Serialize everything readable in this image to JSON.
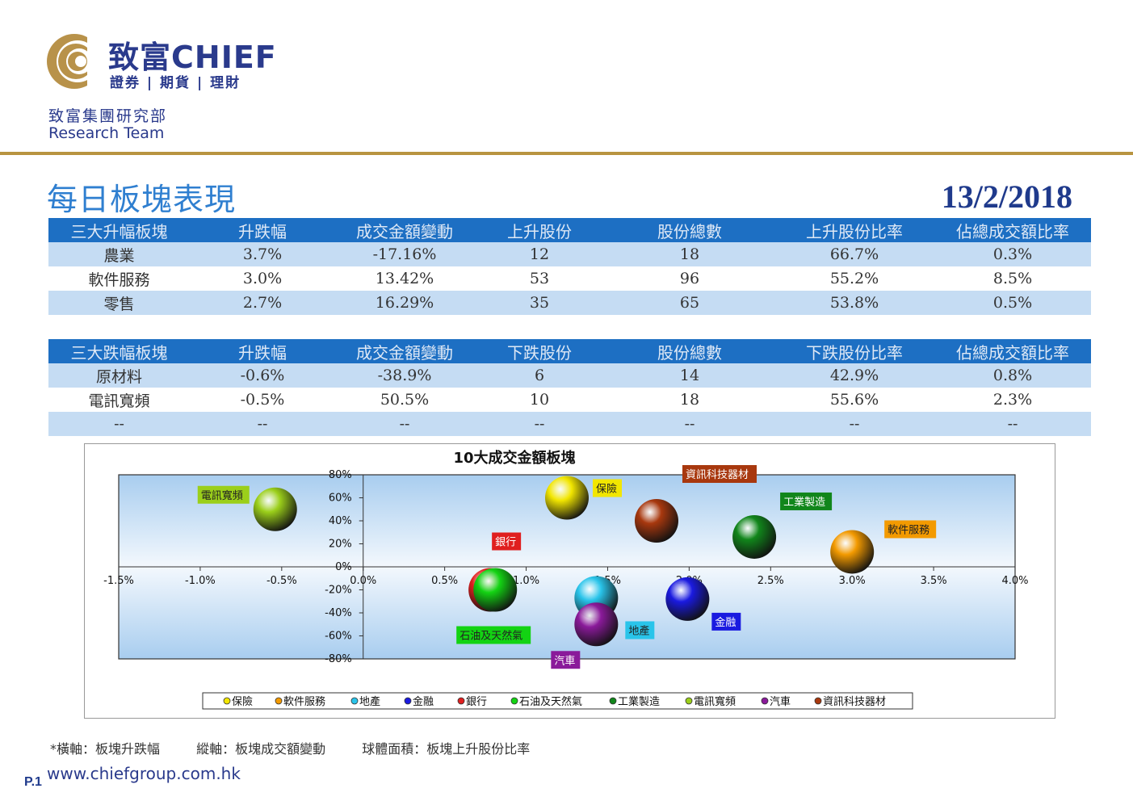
{
  "header": {
    "logo_cn": "致富CHIEF",
    "logo_sub": "證券 | 期貨 | 理財",
    "dept_cn": "致富集團研究部",
    "dept_en": "Research Team",
    "title": "每日板塊表現",
    "date": "13/2/2018"
  },
  "colors": {
    "accent": "#1d6fc3",
    "gold": "#b89440",
    "brand_blue": "#2a3a8c"
  },
  "top_gainers": {
    "headers": [
      "三大升幅板塊",
      "升跌幅",
      "成交金額變動",
      "上升股份",
      "股份總數",
      "上升股份比率",
      "佔總成交額比率"
    ],
    "rows": [
      [
        "農業",
        "3.7%",
        "-17.16%",
        "12",
        "18",
        "66.7%",
        "0.3%"
      ],
      [
        "軟件服務",
        "3.0%",
        "13.42%",
        "53",
        "96",
        "55.2%",
        "8.5%"
      ],
      [
        "零售",
        "2.7%",
        "16.29%",
        "35",
        "65",
        "53.8%",
        "0.5%"
      ]
    ]
  },
  "top_losers": {
    "headers": [
      "三大跌幅板塊",
      "升跌幅",
      "成交金額變動",
      "下跌股份",
      "股份總數",
      "下跌股份比率",
      "佔總成交額比率"
    ],
    "rows": [
      [
        "原材料",
        "-0.6%",
        "-38.9%",
        "6",
        "14",
        "42.9%",
        "0.8%"
      ],
      [
        "電訊寬頻",
        "-0.5%",
        "50.5%",
        "10",
        "18",
        "55.6%",
        "2.3%"
      ],
      [
        "--",
        "--",
        "--",
        "--",
        "--",
        "--",
        "--"
      ]
    ]
  },
  "chart_data": {
    "type": "scatter",
    "title": "10大成交金額板塊",
    "xlim": [
      -1.5,
      4.0
    ],
    "ylim": [
      -80,
      80
    ],
    "x_ticks": [
      "-1.5%",
      "-1.0%",
      "-0.5%",
      "0.0%",
      "0.5%",
      "1.0%",
      "1.5%",
      "2.0%",
      "2.5%",
      "3.0%",
      "3.5%",
      "4.0%"
    ],
    "y_ticks": [
      "80%",
      "60%",
      "40%",
      "20%",
      "0%",
      "-20%",
      "-40%",
      "-60%",
      "-80%"
    ],
    "legend_position": "bottom",
    "series": [
      {
        "name": "保險",
        "x": 1.25,
        "y": 60,
        "color": "#f2e600",
        "label_bg": "#f2e600",
        "label_fg": "#222222"
      },
      {
        "name": "軟件服務",
        "x": 3.0,
        "y": 13,
        "color": "#f39a00",
        "label_bg": "#f39a00",
        "label_fg": "#222222"
      },
      {
        "name": "地產",
        "x": 1.43,
        "y": -27,
        "color": "#29c4ea",
        "label_bg": "#29c4ea",
        "label_fg": "#222222"
      },
      {
        "name": "金融",
        "x": 1.99,
        "y": -28,
        "color": "#1a1ae0",
        "label_bg": "#1a1ae0",
        "label_fg": "#ffffff"
      },
      {
        "name": "銀行",
        "x": 0.78,
        "y": -20,
        "color": "#e01f1f",
        "label_bg": "#e01f1f",
        "label_fg": "#ffffff"
      },
      {
        "name": "石油及天然氣",
        "x": 0.81,
        "y": -20,
        "color": "#13d313",
        "label_bg": "#13d313",
        "label_fg": "#222222"
      },
      {
        "name": "工業製造",
        "x": 2.4,
        "y": 26,
        "color": "#11861b",
        "label_bg": "#11861b",
        "label_fg": "#ffffff"
      },
      {
        "name": "電訊寬頻",
        "x": -0.54,
        "y": 50,
        "color": "#9bcf1a",
        "label_bg": "#9bcf1a",
        "label_fg": "#222222"
      },
      {
        "name": "汽車",
        "x": 1.43,
        "y": -50,
        "color": "#8a1a9a",
        "label_bg": "#8a1a9a",
        "label_fg": "#ffffff"
      },
      {
        "name": "資訊科技器材",
        "x": 1.8,
        "y": 40,
        "color": "#a8380e",
        "label_bg": "#a8380e",
        "label_fg": "#ffffff"
      }
    ]
  },
  "footnote": {
    "x_axis": "*橫軸：板塊升跌幅",
    "y_axis": "縱軸：板塊成交額變動",
    "bubble": "球體面積：板塊上升股份比率"
  },
  "footer": {
    "page": "P.1",
    "website": "www.chiefgroup.com.hk"
  }
}
